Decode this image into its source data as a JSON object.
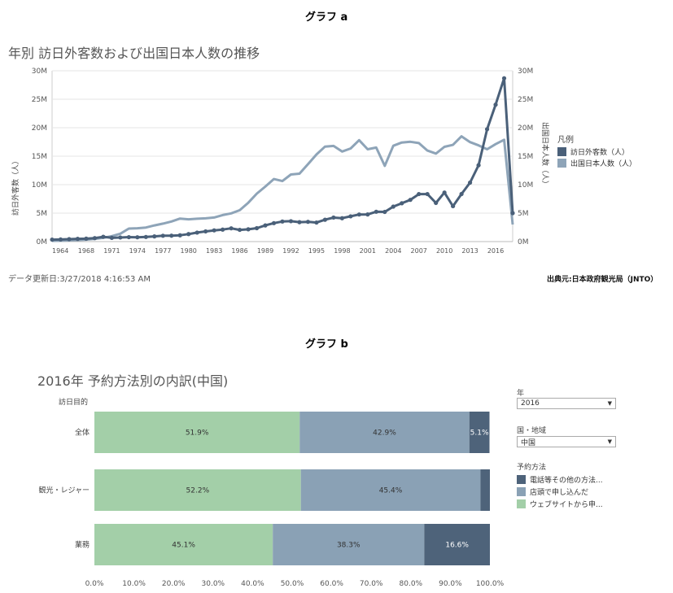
{
  "graph_a_heading": "グラフ a",
  "graph_b_heading": "グラフ b",
  "chart_a_title": "年別 訪日外客数および出国日本人数の推移",
  "chart_a_left_axis_label": "訪日外客数（人）",
  "chart_a_right_axis_label": "出国日本人数（人）",
  "chart_a_legend_title": "凡例",
  "chart_a_updated": "データ更新日:3/27/2018 4:16:53 AM",
  "chart_a_source": "出典元:日本政府観光局（JNTO）",
  "chart_b_title": "2016年 予約方法別の内訳(中国)",
  "chart_b_row_header": "訪日目的",
  "filters": {
    "year_label": "年",
    "year_value": "2016",
    "country_label": "国・地域",
    "country_value": "中国",
    "method_label": "予約方法"
  },
  "chart_data": [
    {
      "type": "line",
      "title": "年別 訪日外客数および出国日本人数の推移",
      "x_first_tick_label": "1964",
      "x_ticks": [
        "1968",
        "1971",
        "1974",
        "1977",
        "1980",
        "1983",
        "1986",
        "1989",
        "1992",
        "1995",
        "1998",
        "2001",
        "2004",
        "2007",
        "2010",
        "2013",
        "2016"
      ],
      "y_ticks": [
        "0M",
        "5M",
        "10M",
        "15M",
        "20M",
        "25M",
        "30M"
      ],
      "y_range": [
        0,
        30
      ],
      "y_unit": "M",
      "grid": true,
      "legend_position": "right",
      "x": [
        1964,
        1965,
        1966,
        1967,
        1968,
        1969,
        1970,
        1971,
        1972,
        1973,
        1974,
        1975,
        1976,
        1977,
        1978,
        1979,
        1980,
        1981,
        1982,
        1983,
        1984,
        1985,
        1986,
        1987,
        1988,
        1989,
        1990,
        1991,
        1992,
        1993,
        1994,
        1995,
        1996,
        1997,
        1998,
        1999,
        2000,
        2001,
        2002,
        2003,
        2004,
        2005,
        2006,
        2007,
        2008,
        2009,
        2010,
        2011,
        2012,
        2013,
        2014,
        2015,
        2016,
        2017,
        2018
      ],
      "series": [
        {
          "name": "訪日外客数（人）",
          "color": "#4a6079",
          "markers": true,
          "values": [
            0.35,
            0.37,
            0.43,
            0.48,
            0.52,
            0.61,
            0.85,
            0.66,
            0.72,
            0.78,
            0.76,
            0.81,
            0.91,
            1.03,
            1.04,
            1.11,
            1.32,
            1.58,
            1.79,
            1.97,
            2.11,
            2.33,
            2.06,
            2.16,
            2.36,
            2.84,
            3.24,
            3.53,
            3.58,
            3.41,
            3.47,
            3.35,
            3.84,
            4.22,
            4.11,
            4.44,
            4.76,
            4.77,
            5.24,
            5.21,
            6.14,
            6.73,
            7.33,
            8.35,
            8.35,
            6.79,
            8.61,
            6.22,
            8.36,
            10.36,
            13.41,
            19.74,
            24.04,
            28.69,
            5.0
          ]
        },
        {
          "name": "出国日本人数（人）",
          "color": "#8ea4b8",
          "markers": false,
          "values": [
            0.13,
            0.16,
            0.21,
            0.27,
            0.34,
            0.49,
            0.66,
            0.96,
            1.39,
            2.29,
            2.34,
            2.47,
            2.85,
            3.15,
            3.53,
            4.04,
            3.91,
            4.01,
            4.09,
            4.23,
            4.66,
            4.95,
            5.52,
            6.83,
            8.43,
            9.66,
            10.99,
            10.63,
            11.79,
            11.93,
            13.58,
            15.3,
            16.69,
            16.8,
            15.81,
            16.36,
            17.82,
            16.22,
            16.52,
            13.3,
            16.83,
            17.4,
            17.53,
            17.3,
            15.99,
            15.45,
            16.64,
            16.99,
            18.49,
            17.47,
            16.9,
            16.21,
            17.12,
            17.89,
            3.0
          ]
        }
      ]
    },
    {
      "type": "bar",
      "orientation": "horizontal",
      "stacked": true,
      "title": "2016年 予約方法別の内訳(中国)",
      "y_header": "訪日目的",
      "categories": [
        "全体",
        "観光・レジャー",
        "業務"
      ],
      "x_ticks": [
        "0.0%",
        "10.0%",
        "20.0%",
        "30.0%",
        "40.0%",
        "50.0%",
        "60.0%",
        "70.0%",
        "80.0%",
        "90.0%",
        "100.0%"
      ],
      "x_range": [
        0,
        100
      ],
      "legend_position": "right",
      "series": [
        {
          "name": "ウェブサイトから申...",
          "color": "#a3cfa8",
          "values": [
            51.9,
            52.2,
            45.1
          ],
          "labels": [
            "51.9%",
            "52.2%",
            "45.1%"
          ]
        },
        {
          "name": "店頭で申し込んだ",
          "color": "#8aa1b5",
          "values": [
            42.9,
            45.4,
            38.3
          ],
          "labels": [
            "42.9%",
            "45.4%",
            "38.3%"
          ]
        },
        {
          "name": "電話等その他の方法...",
          "color": "#4e637a",
          "values": [
            5.1,
            2.4,
            16.6
          ],
          "labels": [
            "5.1%",
            "",
            "16.6%"
          ]
        }
      ]
    }
  ]
}
